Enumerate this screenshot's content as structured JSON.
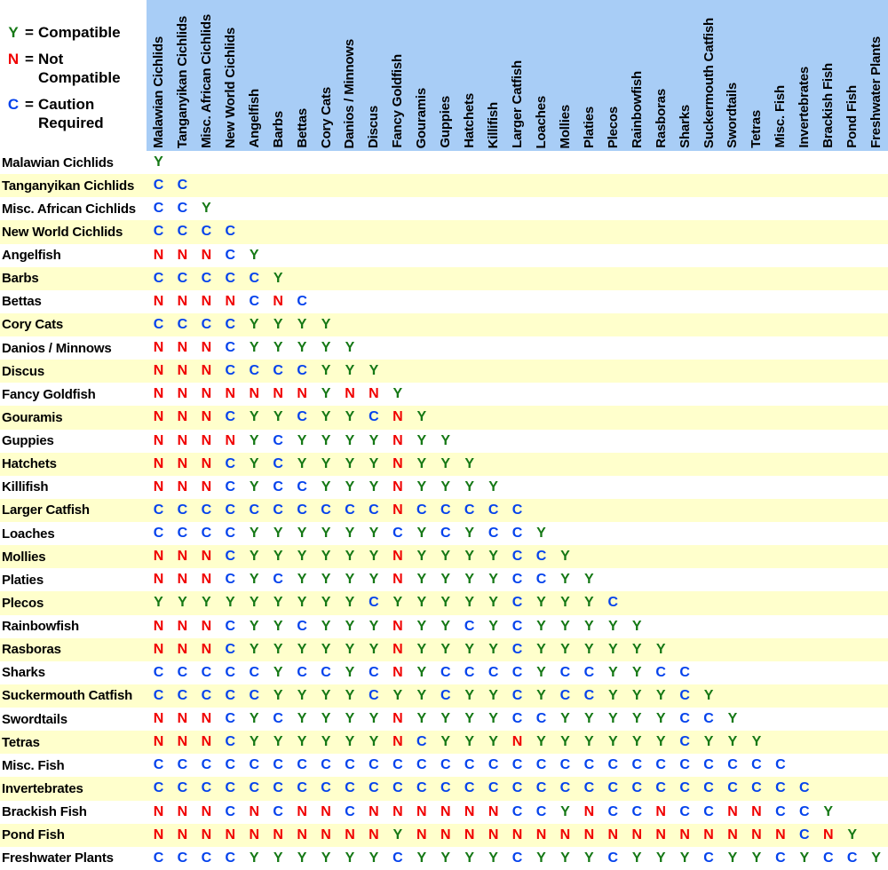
{
  "colors": {
    "header_bg": "#a8cdf6",
    "row_bg": "#ffffff",
    "row_alt_bg": "#ffffcc",
    "compatible": "#157815",
    "not_compatible": "#f00000",
    "caution": "#0442ec"
  },
  "legend": {
    "equals": "=",
    "items": [
      {
        "symbol": "Y",
        "label": "Compatible",
        "color": "#157815"
      },
      {
        "symbol": "N",
        "label": "Not Compatible",
        "color": "#f00000"
      },
      {
        "symbol": "C",
        "label": "Caution Required",
        "color": "#0442ec"
      }
    ]
  },
  "chart_data": {
    "type": "heatmap",
    "legend": {
      "Y": "Compatible",
      "N": "Not Compatible",
      "C": "Caution Required"
    },
    "symbol_colors": {
      "Y": "#157815",
      "N": "#f00000",
      "C": "#0442ec"
    },
    "columns": [
      "Malawian Cichlids",
      "Tanganyikan Cichlids",
      "Misc. African Cichlids",
      "New World Cichlids",
      "Angelfish",
      "Barbs",
      "Bettas",
      "Cory Cats",
      "Danios / Minnows",
      "Discus",
      "Fancy Goldfish",
      "Gouramis",
      "Guppies",
      "Hatchets",
      "Killifish",
      "Larger Catfish",
      "Loaches",
      "Mollies",
      "Platies",
      "Plecos",
      "Rainbowfish",
      "Rasboras",
      "Sharks",
      "Suckermouth Catfish",
      "Swordtails",
      "Tetras",
      "Misc. Fish",
      "Invertebrates",
      "Brackish Fish",
      "Pond Fish",
      "Freshwater Plants"
    ],
    "rows": [
      {
        "label": "Malawian Cichlids",
        "values": "Y"
      },
      {
        "label": "Tanganyikan Cichlids",
        "values": "CC"
      },
      {
        "label": "Misc. African Cichlids",
        "values": "CCY"
      },
      {
        "label": "New World Cichlids",
        "values": "CCCC"
      },
      {
        "label": "Angelfish",
        "values": "NNNCY"
      },
      {
        "label": "Barbs",
        "values": "CCCCCY"
      },
      {
        "label": "Bettas",
        "values": "NNNNCNC"
      },
      {
        "label": "Cory Cats",
        "values": "CCCCYYYY"
      },
      {
        "label": "Danios / Minnows",
        "values": "NNNCYYYYY"
      },
      {
        "label": "Discus",
        "values": "NNNCCCCYYY"
      },
      {
        "label": "Fancy Goldfish",
        "values": "NNNNNNNYNNY"
      },
      {
        "label": "Gouramis",
        "values": "NNNCYYCYYCNY"
      },
      {
        "label": "Guppies",
        "values": "NNNNYCYYYYNYY"
      },
      {
        "label": "Hatchets",
        "values": "NNNCYCYYYYNYYY"
      },
      {
        "label": "Killifish",
        "values": "NNNCYCCYYYNYYYY"
      },
      {
        "label": "Larger Catfish",
        "values": "CCCCCCCCCCNCCCCC"
      },
      {
        "label": "Loaches",
        "values": "CCCCYYYYYYCYCYCCY"
      },
      {
        "label": "Mollies",
        "values": "NNNCYYYYYYNYYYYCCY"
      },
      {
        "label": "Platies",
        "values": "NNNCYCYYYYNYYYYCCYY"
      },
      {
        "label": "Plecos",
        "values": "YYYYYYYYYCYYYYYCYYYC"
      },
      {
        "label": "Rainbowfish",
        "values": "NNNCYYCYYYNYYCYCYYYYY"
      },
      {
        "label": "Rasboras",
        "values": "NNNCYYYYYYNYYYYCYYYYYY"
      },
      {
        "label": "Sharks",
        "values": "CCCCCYCCYCNYCCCCYCCYYCC"
      },
      {
        "label": "Suckermouth Catfish",
        "values": "CCCCCYYYYCYYCYYCYCCYYYCY"
      },
      {
        "label": "Swordtails",
        "values": "NNNCYCYYYYNYYYYCCYYYYYCCY"
      },
      {
        "label": "Tetras",
        "values": "NNNCYYYYYYNCYYYNYYYYYYCYYY"
      },
      {
        "label": "Misc. Fish",
        "values": "CCCCCCCCCCCCCCCCCCCCCCCCCCC"
      },
      {
        "label": "Invertebrates",
        "values": "CCCCCCCCCCCCCCCCCCCCCCCCCCCC"
      },
      {
        "label": "Brackish Fish",
        "values": "NNNCNCNNCNNNNNNCCYNCCNCCNNCCY"
      },
      {
        "label": "Pond Fish",
        "values": "NNNNNNNNNNYNNNNNNNNNNNNNNNNCNY"
      },
      {
        "label": "Freshwater Plants",
        "values": "CCCCYYYYYYCYYYYCYYYCYYYCYYCYCCY"
      }
    ]
  }
}
